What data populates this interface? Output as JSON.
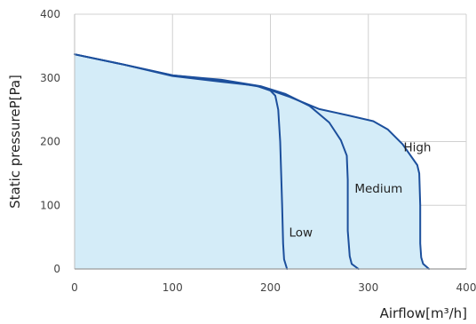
{
  "chart_data": {
    "type": "line",
    "xlabel": "Airflow[m³/h]",
    "ylabel": "Static pressureP[Pa]",
    "xlim": [
      0,
      400
    ],
    "ylim": [
      0,
      400
    ],
    "x_ticks": [
      "0",
      "100",
      "200",
      "300",
      "400"
    ],
    "y_ticks": [
      "0",
      "100",
      "200",
      "300",
      "400"
    ],
    "grid": true,
    "legend": "none",
    "fill_color": "#d4ecf8",
    "line_color": "#1c4f9c",
    "series": [
      {
        "name": "High",
        "points": [
          [
            0,
            337
          ],
          [
            50,
            321
          ],
          [
            100,
            304
          ],
          [
            150,
            296
          ],
          [
            190,
            286
          ],
          [
            220,
            270
          ],
          [
            250,
            251
          ],
          [
            280,
            241
          ],
          [
            305,
            232
          ],
          [
            320,
            219
          ],
          [
            335,
            196
          ],
          [
            350,
            163
          ],
          [
            352,
            150
          ],
          [
            353,
            100
          ],
          [
            353,
            40
          ],
          [
            354,
            18
          ],
          [
            356,
            8
          ],
          [
            362,
            0
          ]
        ]
      },
      {
        "name": "Medium",
        "points": [
          [
            0,
            337
          ],
          [
            50,
            321
          ],
          [
            100,
            304
          ],
          [
            150,
            297
          ],
          [
            190,
            287
          ],
          [
            215,
            275
          ],
          [
            240,
            256
          ],
          [
            260,
            230
          ],
          [
            272,
            202
          ],
          [
            278,
            178
          ],
          [
            279,
            140
          ],
          [
            279,
            60
          ],
          [
            281,
            20
          ],
          [
            283,
            8
          ],
          [
            290,
            0
          ]
        ]
      },
      {
        "name": "Low",
        "points": [
          [
            0,
            337
          ],
          [
            50,
            321
          ],
          [
            100,
            303
          ],
          [
            150,
            294
          ],
          [
            185,
            288
          ],
          [
            200,
            280
          ],
          [
            205,
            272
          ],
          [
            208,
            250
          ],
          [
            210,
            200
          ],
          [
            211,
            150
          ],
          [
            212,
            100
          ],
          [
            213,
            40
          ],
          [
            214,
            15
          ],
          [
            217,
            0
          ]
        ]
      }
    ],
    "annotations": [
      "High",
      "Medium",
      "Low"
    ]
  }
}
